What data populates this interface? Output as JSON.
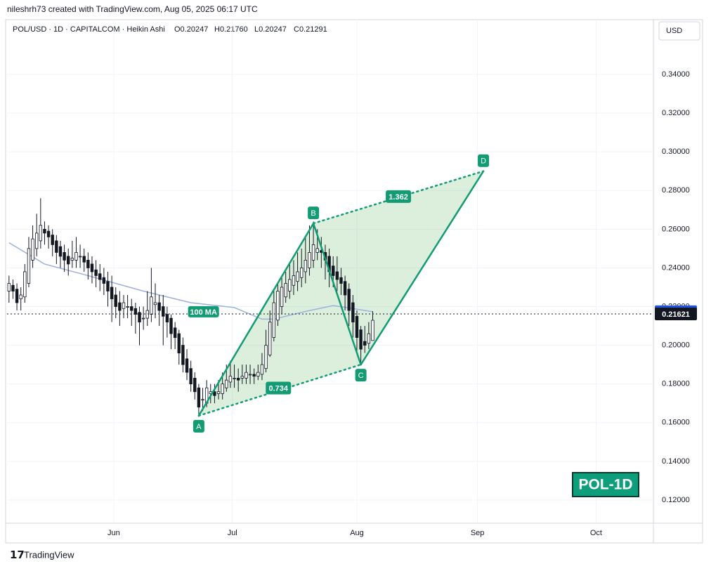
{
  "header": {
    "author_line": "nileshrh73 created with TradingView.com, Aug 05, 2025 06:17 UTC",
    "symbol": "POL/USD · 1D · CAPITALCOM · Heikin Ashi",
    "open": "O0.20247",
    "high": "H0.21760",
    "low": "L0.20247",
    "close": "C0.21291",
    "currency": "USD",
    "brand": "TradingView"
  },
  "chart_data": {
    "type": "candlestick",
    "up_color": "#ffffff",
    "down_color": "#131722",
    "wick_color": "#131722",
    "ohlc": [
      [
        0.228,
        0.236,
        0.222,
        0.232
      ],
      [
        0.231,
        0.234,
        0.224,
        0.228
      ],
      [
        0.229,
        0.232,
        0.218,
        0.222
      ],
      [
        0.224,
        0.23,
        0.218,
        0.226
      ],
      [
        0.225,
        0.242,
        0.222,
        0.238
      ],
      [
        0.232,
        0.256,
        0.23,
        0.25
      ],
      [
        0.244,
        0.262,
        0.24,
        0.255
      ],
      [
        0.25,
        0.268,
        0.246,
        0.258
      ],
      [
        0.254,
        0.276,
        0.25,
        0.262
      ],
      [
        0.26,
        0.264,
        0.252,
        0.258
      ],
      [
        0.259,
        0.262,
        0.25,
        0.256
      ],
      [
        0.257,
        0.26,
        0.246,
        0.252
      ],
      [
        0.254,
        0.257,
        0.242,
        0.248
      ],
      [
        0.251,
        0.254,
        0.24,
        0.246
      ],
      [
        0.248,
        0.252,
        0.238,
        0.244
      ],
      [
        0.246,
        0.25,
        0.236,
        0.242
      ],
      [
        0.244,
        0.254,
        0.24,
        0.245
      ],
      [
        0.244,
        0.256,
        0.24,
        0.248
      ],
      [
        0.246,
        0.252,
        0.24,
        0.246
      ],
      [
        0.246,
        0.25,
        0.238,
        0.243
      ],
      [
        0.244,
        0.248,
        0.234,
        0.24
      ],
      [
        0.242,
        0.246,
        0.232,
        0.238
      ],
      [
        0.239,
        0.244,
        0.23,
        0.236
      ],
      [
        0.237,
        0.242,
        0.228,
        0.234
      ],
      [
        0.235,
        0.24,
        0.226,
        0.232
      ],
      [
        0.233,
        0.238,
        0.22,
        0.228
      ],
      [
        0.23,
        0.236,
        0.212,
        0.224
      ],
      [
        0.226,
        0.23,
        0.214,
        0.22
      ],
      [
        0.222,
        0.228,
        0.21,
        0.218
      ],
      [
        0.219,
        0.226,
        0.214,
        0.222
      ],
      [
        0.22,
        0.226,
        0.214,
        0.22
      ],
      [
        0.22,
        0.224,
        0.21,
        0.218
      ],
      [
        0.219,
        0.222,
        0.206,
        0.216
      ],
      [
        0.217,
        0.22,
        0.2,
        0.212
      ],
      [
        0.214,
        0.22,
        0.208,
        0.214
      ],
      [
        0.214,
        0.228,
        0.21,
        0.218
      ],
      [
        0.216,
        0.24,
        0.212,
        0.225
      ],
      [
        0.221,
        0.232,
        0.214,
        0.222
      ],
      [
        0.222,
        0.226,
        0.21,
        0.218
      ],
      [
        0.22,
        0.226,
        0.2,
        0.215
      ],
      [
        0.216,
        0.22,
        0.204,
        0.212
      ],
      [
        0.214,
        0.216,
        0.198,
        0.206
      ],
      [
        0.209,
        0.212,
        0.198,
        0.204
      ],
      [
        0.206,
        0.208,
        0.19,
        0.196
      ],
      [
        0.2,
        0.204,
        0.186,
        0.19
      ],
      [
        0.193,
        0.198,
        0.182,
        0.186
      ],
      [
        0.188,
        0.192,
        0.176,
        0.18
      ],
      [
        0.183,
        0.186,
        0.172,
        0.176
      ],
      [
        0.178,
        0.18,
        0.163,
        0.168
      ],
      [
        0.172,
        0.178,
        0.166,
        0.172
      ],
      [
        0.17,
        0.182,
        0.168,
        0.178
      ],
      [
        0.175,
        0.18,
        0.17,
        0.176
      ],
      [
        0.176,
        0.18,
        0.17,
        0.174
      ],
      [
        0.175,
        0.182,
        0.172,
        0.176
      ],
      [
        0.175,
        0.186,
        0.172,
        0.18
      ],
      [
        0.178,
        0.19,
        0.176,
        0.182
      ],
      [
        0.181,
        0.192,
        0.178,
        0.184
      ],
      [
        0.183,
        0.19,
        0.178,
        0.183
      ],
      [
        0.183,
        0.188,
        0.176,
        0.182
      ],
      [
        0.183,
        0.19,
        0.18,
        0.184
      ],
      [
        0.183,
        0.19,
        0.18,
        0.186
      ],
      [
        0.185,
        0.19,
        0.18,
        0.185
      ],
      [
        0.185,
        0.188,
        0.18,
        0.184
      ],
      [
        0.184,
        0.19,
        0.182,
        0.186
      ],
      [
        0.185,
        0.196,
        0.182,
        0.19
      ],
      [
        0.188,
        0.208,
        0.186,
        0.2
      ],
      [
        0.195,
        0.218,
        0.194,
        0.212
      ],
      [
        0.204,
        0.228,
        0.202,
        0.222
      ],
      [
        0.213,
        0.232,
        0.21,
        0.228
      ],
      [
        0.22,
        0.236,
        0.216,
        0.23
      ],
      [
        0.225,
        0.238,
        0.222,
        0.232
      ],
      [
        0.228,
        0.242,
        0.224,
        0.234
      ],
      [
        0.231,
        0.244,
        0.226,
        0.236
      ],
      [
        0.233,
        0.248,
        0.228,
        0.238
      ],
      [
        0.235,
        0.25,
        0.23,
        0.24
      ],
      [
        0.238,
        0.256,
        0.232,
        0.244
      ],
      [
        0.24,
        0.262,
        0.236,
        0.248
      ],
      [
        0.244,
        0.264,
        0.24,
        0.252
      ],
      [
        0.248,
        0.26,
        0.244,
        0.25
      ],
      [
        0.249,
        0.256,
        0.24,
        0.248
      ],
      [
        0.248,
        0.252,
        0.234,
        0.244
      ],
      [
        0.246,
        0.25,
        0.23,
        0.238
      ],
      [
        0.241,
        0.246,
        0.23,
        0.236
      ],
      [
        0.238,
        0.246,
        0.228,
        0.234
      ],
      [
        0.235,
        0.24,
        0.226,
        0.232
      ],
      [
        0.233,
        0.236,
        0.218,
        0.226
      ],
      [
        0.229,
        0.232,
        0.21,
        0.218
      ],
      [
        0.222,
        0.226,
        0.204,
        0.212
      ],
      [
        0.215,
        0.218,
        0.196,
        0.204
      ],
      [
        0.208,
        0.21,
        0.19,
        0.198
      ],
      [
        0.202,
        0.21,
        0.196,
        0.2
      ],
      [
        0.201,
        0.212,
        0.198,
        0.206
      ],
      [
        0.20247,
        0.2176,
        0.20247,
        0.21291
      ]
    ],
    "xlim": [
      -0.5,
      163
    ],
    "xticks": [
      {
        "value": 26.5,
        "label": "Jun"
      },
      {
        "value": 56.5,
        "label": "Jul"
      },
      {
        "value": 88,
        "label": "Aug"
      },
      {
        "value": 118.5,
        "label": "Sep"
      },
      {
        "value": 148.5,
        "label": "Oct"
      }
    ],
    "ylim": [
      0.108,
      0.3676
    ],
    "yticks": [
      {
        "value": 0.12,
        "label": "0.12000"
      },
      {
        "value": 0.14,
        "label": "0.14000"
      },
      {
        "value": 0.16,
        "label": "0.16000"
      },
      {
        "value": 0.18,
        "label": "0.18000"
      },
      {
        "value": 0.2,
        "label": "0.20000"
      },
      {
        "value": 0.22,
        "label": "0.22000"
      },
      {
        "value": 0.24,
        "label": "0.24000"
      },
      {
        "value": 0.26,
        "label": "0.26000"
      },
      {
        "value": 0.28,
        "label": "0.28000"
      },
      {
        "value": 0.3,
        "label": "0.30000"
      },
      {
        "value": 0.32,
        "label": "0.32000"
      },
      {
        "value": 0.34,
        "label": "0.34000"
      }
    ],
    "grid": true,
    "ma": {
      "name": "100 MA",
      "color": "#9fb0dc",
      "label_color": "#1e53e5",
      "x": [
        0,
        9,
        20,
        34,
        46,
        57,
        64,
        67,
        75,
        82,
        87,
        92
      ],
      "values": [
        0.253,
        0.242,
        0.236,
        0.228,
        0.222,
        0.2195,
        0.2135,
        0.2135,
        0.2175,
        0.2205,
        0.219,
        0.21732
      ]
    },
    "last_price": 0.21621,
    "pattern": {
      "color": "#139c74",
      "fill": "rgba(76,175,80,0.2)",
      "points": [
        {
          "label": "A",
          "x": 48,
          "y": 0.1636
        },
        {
          "label": "B",
          "x": 77,
          "y": 0.263
        },
        {
          "label": "C",
          "x": 89,
          "y": 0.19
        },
        {
          "label": "D",
          "x": 120,
          "y": 0.29
        }
      ],
      "ratio_ac": 0.734,
      "ratio_bd": 1.362
    },
    "watermark": "POL-1D"
  }
}
